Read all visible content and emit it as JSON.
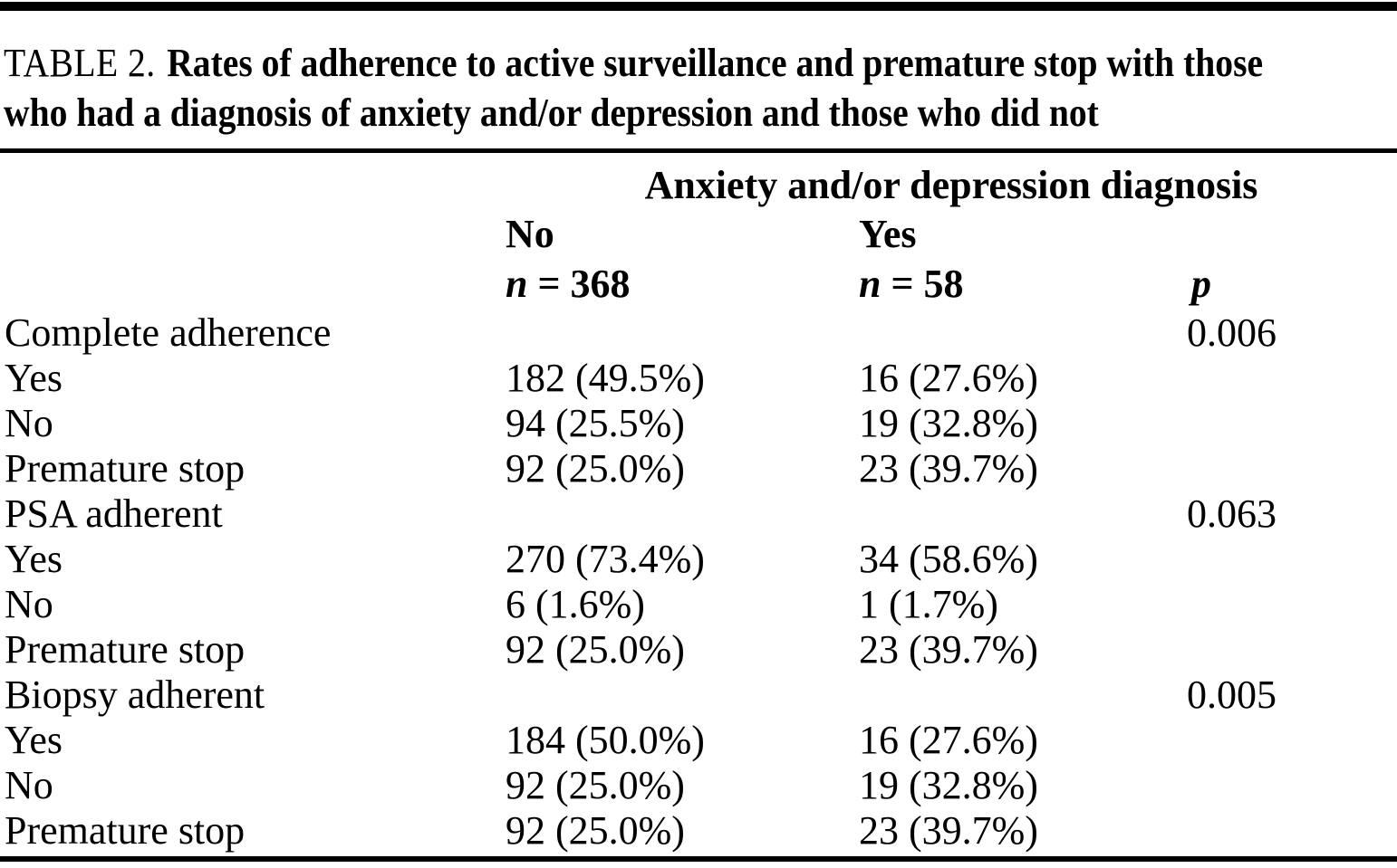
{
  "colors": {
    "background": "#ffffff",
    "text": "#000000",
    "rule": "#000000"
  },
  "caption": {
    "label": "TABLE 2.",
    "line1": "Rates of adherence to active surveillance and premature stop with those",
    "line2": "who had a diagnosis of anxiety and/or depression and those who did not"
  },
  "header": {
    "group": "Anxiety and/or depression diagnosis",
    "col_no": {
      "label": "No",
      "n_symbol": "n",
      "n_value": "= 368"
    },
    "col_yes": {
      "label": "Yes",
      "n_symbol": "n",
      "n_value": "= 58"
    },
    "p_label": "p"
  },
  "rows": [
    {
      "label": "Complete adherence",
      "no": "",
      "yes": "",
      "p": "0.006"
    },
    {
      "label": "Yes",
      "no": "182 (49.5%)",
      "yes": "16 (27.6%)",
      "p": ""
    },
    {
      "label": "No",
      "no": "94 (25.5%)",
      "yes": "19 (32.8%)",
      "p": ""
    },
    {
      "label": "Premature stop",
      "no": "92 (25.0%)",
      "yes": "23 (39.7%)",
      "p": ""
    },
    {
      "label": "PSA adherent",
      "no": "",
      "yes": "",
      "p": "0.063"
    },
    {
      "label": "Yes",
      "no": "270 (73.4%)",
      "yes": "34 (58.6%)",
      "p": ""
    },
    {
      "label": "No",
      "no": "6 (1.6%)",
      "yes": "1 (1.7%)",
      "p": ""
    },
    {
      "label": "Premature stop",
      "no": "92 (25.0%)",
      "yes": "23 (39.7%)",
      "p": ""
    },
    {
      "label": "Biopsy adherent",
      "no": "",
      "yes": "",
      "p": "0.005"
    },
    {
      "label": "Yes",
      "no": "184 (50.0%)",
      "yes": "16 (27.6%)",
      "p": ""
    },
    {
      "label": "No",
      "no": "92 (25.0%)",
      "yes": "19 (32.8%)",
      "p": ""
    },
    {
      "label": "Premature stop",
      "no": "92 (25.0%)",
      "yes": "23 (39.7%)",
      "p": ""
    }
  ]
}
